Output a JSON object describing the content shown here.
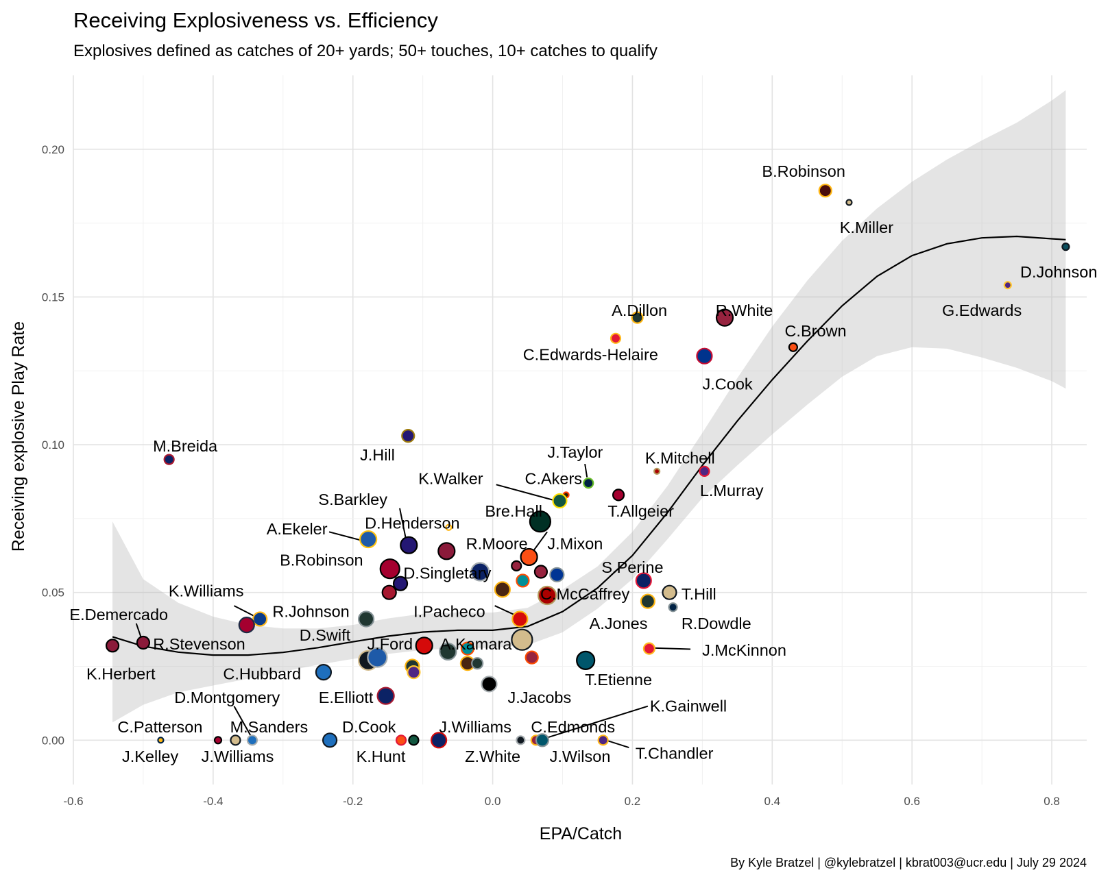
{
  "chart_data": {
    "type": "scatter",
    "title": "Receiving Explosiveness vs. Efficiency",
    "subtitle": "Explosives defined as catches of 20+ yards; 50+ touches, 10+ catches to qualify",
    "xlabel": "EPA/Catch",
    "ylabel": "Receiving explosive Play Rate",
    "caption": "By Kyle Bratzel | @kylebratzel | kbrat003@ucr.edu | July 29 2024",
    "xlim": [
      -0.6,
      0.85
    ],
    "ylim": [
      -0.015,
      0.225
    ],
    "x_ticks": [
      "-0.6",
      "-0.4",
      "-0.2",
      "0.0",
      "0.2",
      "0.4",
      "0.6",
      "0.8"
    ],
    "y_ticks": [
      "0.00",
      "0.05",
      "0.10",
      "0.15",
      "0.20"
    ],
    "grid": true,
    "points": [
      {
        "x": 0.82,
        "y": 0.167,
        "r": 5,
        "fill": "#0b4f5e",
        "stroke": "#101820",
        "label": "D.Johnson",
        "lx": 0.81,
        "ly": 0.1585
      },
      {
        "x": 0.737,
        "y": 0.154,
        "r": 5,
        "fill": "#4f2683",
        "stroke": "#ffc62f",
        "label": "G.Edwards",
        "lx": 0.7,
        "ly": 0.1455
      },
      {
        "x": 0.476,
        "y": 0.186,
        "r": 9,
        "fill": "#4a0d0d",
        "stroke": "#ffb612",
        "label": "B.Robinson",
        "lx": 0.445,
        "ly": 0.1925
      },
      {
        "x": 0.51,
        "y": 0.182,
        "r": 4,
        "fill": "#d3bc8d",
        "stroke": "#101820",
        "label": "K.Miller",
        "lx": 0.535,
        "ly": 0.1735
      },
      {
        "x": 0.332,
        "y": 0.143,
        "r": 12,
        "fill": "#97233f",
        "stroke": "#000000",
        "label": "R.White",
        "lx": 0.36,
        "ly": 0.1455
      },
      {
        "x": 0.207,
        "y": 0.143,
        "r": 8,
        "fill": "#203731",
        "stroke": "#ffb612",
        "label": "A.Dillon",
        "lx": 0.21,
        "ly": 0.1455
      },
      {
        "x": 0.176,
        "y": 0.136,
        "r": 7,
        "fill": "#e31837",
        "stroke": "#ffb81c",
        "label": "C.Edwards-Helaire",
        "lx": 0.14,
        "ly": 0.1305
      },
      {
        "x": 0.43,
        "y": 0.133,
        "r": 6,
        "fill": "#fb4f14",
        "stroke": "#000000",
        "label": "C.Brown",
        "lx": 0.462,
        "ly": 0.1385
      },
      {
        "x": 0.303,
        "y": 0.13,
        "r": 11,
        "fill": "#00338d",
        "stroke": "#c60c30",
        "label": "J.Cook",
        "lx": 0.336,
        "ly": 0.1205
      },
      {
        "x": -0.121,
        "y": 0.103,
        "r": 9,
        "fill": "#241773",
        "stroke": "#9e7c0c",
        "label": "J.Hill",
        "lx": -0.165,
        "ly": 0.0965
      },
      {
        "x": -0.463,
        "y": 0.095,
        "r": 7,
        "fill": "#0b2265",
        "stroke": "#a71930",
        "label": "M.Breida",
        "lx": -0.44,
        "ly": 0.0995
      },
      {
        "x": 0.235,
        "y": 0.091,
        "r": 4,
        "fill": "#aa0000",
        "stroke": "#b3995d",
        "label": "K.Mitchell",
        "lx": 0.268,
        "ly": 0.0955
      },
      {
        "x": 0.303,
        "y": 0.091,
        "r": 7,
        "fill": "#4f2683",
        "stroke": "#e31837",
        "label": "L.Murray",
        "lx": 0.342,
        "ly": 0.0845
      },
      {
        "x": 0.137,
        "y": 0.087,
        "r": 7,
        "fill": "#002244",
        "stroke": "#69be28",
        "label": "J.Taylor",
        "lx": 0.118,
        "ly": 0.0975,
        "leader": [
          0.132,
          0.0935,
          0.135,
          0.089
        ]
      },
      {
        "x": 0.18,
        "y": 0.083,
        "r": 8,
        "fill": "#a5002f",
        "stroke": "#000000",
        "label": "T.Allgeier",
        "lx": 0.212,
        "ly": 0.0775
      },
      {
        "x": 0.105,
        "y": 0.083,
        "r": 4,
        "fill": "#311d00",
        "stroke": "#ff3c00",
        "label": "C.Akers",
        "lx": 0.087,
        "ly": 0.0885
      },
      {
        "x": 0.096,
        "y": 0.081,
        "r": 10,
        "fill": "#125740",
        "stroke": "#ffe000",
        "label": "K.Walker",
        "lx": -0.06,
        "ly": 0.0885,
        "leader": [
          0.005,
          0.0865,
          0.094,
          0.0808
        ]
      },
      {
        "x": 0.068,
        "y": 0.074,
        "r": 15,
        "fill": "#003024",
        "stroke": "#000000",
        "label": "Bre.Hall",
        "lx": 0.03,
        "ly": 0.0775
      },
      {
        "x": -0.063,
        "y": 0.072,
        "r": 4,
        "fill": "#ffffff",
        "stroke": "#ffb612",
        "label": "D.Henderson",
        "lx": -0.115,
        "ly": 0.0735
      },
      {
        "x": -0.178,
        "y": 0.068,
        "r": 12,
        "fill": "#1e5aa8",
        "stroke": "#ffc20e",
        "label": "A.Ekeler",
        "lx": -0.28,
        "ly": 0.0715,
        "leader": [
          -0.234,
          0.0705,
          -0.186,
          0.0675
        ]
      },
      {
        "x": -0.12,
        "y": 0.066,
        "r": 12,
        "fill": "#241773",
        "stroke": "#000000",
        "label": "S.Barkley",
        "lx": -0.2,
        "ly": 0.0815,
        "leader": [
          -0.133,
          0.0785,
          -0.122,
          0.0655
        ]
      },
      {
        "x": -0.066,
        "y": 0.064,
        "r": 12,
        "fill": "#8b1a3a",
        "stroke": "#000000",
        "label": "R.Moore",
        "lx": 0.006,
        "ly": 0.0665
      },
      {
        "x": 0.052,
        "y": 0.062,
        "r": 12,
        "fill": "#fb4f14",
        "stroke": "#000000",
        "label": "J.Mixon",
        "lx": 0.118,
        "ly": 0.0665,
        "leader": [
          0.078,
          0.0705,
          0.058,
          0.064
        ]
      },
      {
        "x": -0.147,
        "y": 0.058,
        "r": 14,
        "fill": "#a5002f",
        "stroke": "#000000",
        "label": "B.Robinson",
        "lx": -0.245,
        "ly": 0.061
      },
      {
        "x": -0.018,
        "y": 0.057,
        "r": 13,
        "fill": "#0b2265",
        "stroke": "#a5acaf",
        "label": "D.Singletary",
        "lx": -0.065,
        "ly": 0.0565
      },
      {
        "x": 0.034,
        "y": 0.059,
        "r": 7,
        "fill": "#97233f",
        "stroke": "#000000"
      },
      {
        "x": 0.069,
        "y": 0.057,
        "r": 9,
        "fill": "#97233f",
        "stroke": "#000000"
      },
      {
        "x": 0.092,
        "y": 0.056,
        "r": 10,
        "fill": "#003594",
        "stroke": "#869397"
      },
      {
        "x": 0.043,
        "y": 0.054,
        "r": 9,
        "fill": "#008e97",
        "stroke": "#fc4c02"
      },
      {
        "x": -0.132,
        "y": 0.053,
        "r": 10,
        "fill": "#241773",
        "stroke": "#000000"
      },
      {
        "x": -0.148,
        "y": 0.05,
        "r": 10,
        "fill": "#a71930",
        "stroke": "#000000"
      },
      {
        "x": 0.014,
        "y": 0.051,
        "r": 11,
        "fill": "#4a2511",
        "stroke": "#ffb612"
      },
      {
        "x": 0.078,
        "y": 0.049,
        "r": 13,
        "fill": "#aa0000",
        "stroke": "#b3995d",
        "label": "C.McCaffrey",
        "lx": 0.132,
        "ly": 0.0495
      },
      {
        "x": 0.216,
        "y": 0.054,
        "r": 11,
        "fill": "#0b2265",
        "stroke": "#e31837",
        "label": "S.Perine",
        "lx": 0.2,
        "ly": 0.0585
      },
      {
        "x": 0.253,
        "y": 0.05,
        "r": 10,
        "fill": "#d3bc8d",
        "stroke": "#101820",
        "label": "T.Hill",
        "lx": 0.295,
        "ly": 0.0495
      },
      {
        "x": 0.222,
        "y": 0.047,
        "r": 10,
        "fill": "#203731",
        "stroke": "#ffb612",
        "label": "A.Jones",
        "lx": 0.18,
        "ly": 0.0395
      },
      {
        "x": 0.258,
        "y": 0.045,
        "r": 6,
        "fill": "#002244",
        "stroke": "#869397",
        "label": "R.Dowdle",
        "lx": 0.32,
        "ly": 0.0395
      },
      {
        "x": 0.039,
        "y": 0.041,
        "r": 11,
        "fill": "#d50a0a",
        "stroke": "#ffb612",
        "label": "I.Pacheco",
        "lx": -0.062,
        "ly": 0.0435,
        "leader": [
          0.003,
          0.0455,
          0.037,
          0.0418
        ]
      },
      {
        "x": -0.333,
        "y": 0.041,
        "r": 10,
        "fill": "#0b3c8a",
        "stroke": "#ffb81c",
        "label": "K.Williams",
        "lx": -0.41,
        "ly": 0.0505,
        "leader": [
          -0.37,
          0.0455,
          -0.337,
          0.0415
        ]
      },
      {
        "x": -0.181,
        "y": 0.041,
        "r": 11,
        "fill": "#203731",
        "stroke": "#869397",
        "label": "R.Johnson",
        "lx": -0.26,
        "ly": 0.0435
      },
      {
        "x": -0.352,
        "y": 0.039,
        "r": 11,
        "fill": "#a5002f",
        "stroke": "#1f2a44",
        "label": "D.Swift",
        "lx": -0.24,
        "ly": 0.0355
      },
      {
        "x": -0.544,
        "y": 0.032,
        "r": 9,
        "fill": "#8b1a3a",
        "stroke": "#000000",
        "label": "K.Herbert",
        "lx": -0.532,
        "ly": 0.0225
      },
      {
        "x": -0.5,
        "y": 0.033,
        "r": 9,
        "fill": "#8b1a3a",
        "stroke": "#000000",
        "label": "R.Stevenson",
        "lx": -0.42,
        "ly": 0.0325
      },
      {
        "x": -0.5,
        "y": 0.033,
        "r": 0,
        "label": "E.Demercado",
        "lx": -0.535,
        "ly": 0.0425,
        "leader": [
          -0.51,
          0.0395,
          -0.502,
          0.034
        ]
      },
      {
        "x": -0.098,
        "y": 0.032,
        "r": 12,
        "fill": "#d50a0a",
        "stroke": "#000000",
        "label": "J.Ford",
        "lx": -0.147,
        "ly": 0.0325
      },
      {
        "x": -0.064,
        "y": 0.03,
        "r": 12,
        "fill": "#203731",
        "stroke": "#869397",
        "label": "A.Kamara",
        "lx": -0.024,
        "ly": 0.0325
      },
      {
        "x": 0.042,
        "y": 0.034,
        "r": 15,
        "fill": "#d3bc8d",
        "stroke": "#101820"
      },
      {
        "x": -0.036,
        "y": 0.031,
        "r": 9,
        "fill": "#008e97",
        "stroke": "#fc4c02"
      },
      {
        "x": -0.178,
        "y": 0.027,
        "r": 14,
        "fill": "#101820",
        "stroke": "#d3bc8d"
      },
      {
        "x": -0.165,
        "y": 0.028,
        "r": 14,
        "fill": "#1e5aa8",
        "stroke": "#a5acaf"
      },
      {
        "x": -0.115,
        "y": 0.025,
        "r": 10,
        "fill": "#203731",
        "stroke": "#ffb612"
      },
      {
        "x": -0.113,
        "y": 0.023,
        "r": 9,
        "fill": "#4f2683",
        "stroke": "#ffc62f"
      },
      {
        "x": -0.036,
        "y": 0.026,
        "r": 10,
        "fill": "#4a2511",
        "stroke": "#ffb612"
      },
      {
        "x": -0.022,
        "y": 0.026,
        "r": 8,
        "fill": "#203731",
        "stroke": "#869397"
      },
      {
        "x": 0.056,
        "y": 0.028,
        "r": 9,
        "fill": "#97233f",
        "stroke": "#fc4c02"
      },
      {
        "x": -0.242,
        "y": 0.023,
        "r": 11,
        "fill": "#1e6fbd",
        "stroke": "#101820",
        "label": "C.Hubbard",
        "lx": -0.33,
        "ly": 0.0225
      },
      {
        "x": 0.133,
        "y": 0.027,
        "r": 13,
        "fill": "#00566b",
        "stroke": "#000000",
        "label": "T.Etienne",
        "lx": 0.18,
        "ly": 0.0205
      },
      {
        "x": 0.224,
        "y": 0.031,
        "r": 8,
        "fill": "#e31837",
        "stroke": "#ffb81c",
        "label": "J.McKinnon",
        "lx": 0.36,
        "ly": 0.0305,
        "leader": [
          0.283,
          0.0308,
          0.23,
          0.0312
        ]
      },
      {
        "x": -0.005,
        "y": 0.019,
        "r": 11,
        "fill": "#000000",
        "stroke": "#a5acaf",
        "label": "J.Jacobs",
        "lx": 0.067,
        "ly": 0.0145
      },
      {
        "x": -0.153,
        "y": 0.015,
        "r": 12,
        "fill": "#0b2265",
        "stroke": "#a71930",
        "label": "E.Elliott",
        "lx": -0.21,
        "ly": 0.0145
      },
      {
        "x": -0.475,
        "y": 0.0,
        "r": 4,
        "fill": "#ffb612",
        "stroke": "#002244",
        "label": "C.Patterson",
        "lx": -0.476,
        "ly": 0.0045
      },
      {
        "x": -0.476,
        "y": 0.0,
        "r": 0,
        "label": "J.Kelley",
        "lx": -0.49,
        "ly": -0.0055
      },
      {
        "x": -0.393,
        "y": 0.0,
        "r": 5,
        "fill": "#a5002f",
        "stroke": "#000000"
      },
      {
        "x": -0.368,
        "y": 0.0,
        "r": 7,
        "fill": "#d3bc8d",
        "stroke": "#101820",
        "label": "J.Williams",
        "lx": -0.365,
        "ly": -0.0055
      },
      {
        "x": -0.344,
        "y": 0.0,
        "r": 7,
        "fill": "#1e6fbd",
        "stroke": "#a5acaf",
        "label": "M.Sanders",
        "lx": -0.32,
        "ly": 0.0045
      },
      {
        "x": -0.344,
        "y": 0.0,
        "r": 0,
        "label": "D.Montgomery",
        "lx": -0.38,
        "ly": 0.0145,
        "leader": [
          -0.37,
          0.0115,
          -0.345,
          0.001
        ]
      },
      {
        "x": -0.233,
        "y": 0.0,
        "r": 10,
        "fill": "#1e6fbd",
        "stroke": "#101820",
        "label": "D.Cook",
        "lx": -0.177,
        "ly": 0.0045
      },
      {
        "x": -0.131,
        "y": 0.0,
        "r": 7,
        "fill": "#fb4f14",
        "stroke": "#e31837"
      },
      {
        "x": -0.113,
        "y": 0.0,
        "r": 7,
        "fill": "#125740",
        "stroke": "#000000",
        "label": "K.Hunt",
        "lx": -0.16,
        "ly": -0.0055
      },
      {
        "x": -0.077,
        "y": 0.0,
        "r": 11,
        "fill": "#0b2265",
        "stroke": "#d50a0a",
        "label": "J.Williams",
        "lx": -0.025,
        "ly": 0.0045
      },
      {
        "x": 0.04,
        "y": 0.0,
        "r": 6,
        "fill": "#101820",
        "stroke": "#a5acaf",
        "label": "Z.White",
        "lx": 0.0,
        "ly": -0.0055
      },
      {
        "x": 0.062,
        "y": 0.0,
        "r": 7,
        "fill": "#97233f",
        "stroke": "#ffb612",
        "label": "C.Edmonds",
        "lx": 0.115,
        "ly": 0.0045
      },
      {
        "x": 0.071,
        "y": 0.0,
        "r": 9,
        "fill": "#00566b",
        "stroke": "#869397",
        "label": "J.Wilson",
        "lx": 0.125,
        "ly": -0.0055,
        "leader2": [
          0.222,
          0.0115,
          0.073,
          0.0005
        ],
        "label2": "K.Gainwell",
        "lx2": 0.28,
        "ly2": 0.0115
      },
      {
        "x": 0.158,
        "y": 0.0,
        "r": 7,
        "fill": "#4f2683",
        "stroke": "#ffb81c",
        "label": "T.Chandler",
        "lx": 0.26,
        "ly": -0.0045,
        "leader": [
          0.195,
          -0.0025,
          0.162,
          0.0
        ]
      }
    ],
    "smooth_line": {
      "x": [
        -0.544,
        -0.5,
        -0.45,
        -0.4,
        -0.35,
        -0.3,
        -0.25,
        -0.2,
        -0.15,
        -0.1,
        -0.05,
        0.0,
        0.05,
        0.1,
        0.15,
        0.2,
        0.25,
        0.3,
        0.35,
        0.4,
        0.45,
        0.5,
        0.55,
        0.6,
        0.65,
        0.7,
        0.75,
        0.8,
        0.82
      ],
      "y": [
        0.035,
        0.0318,
        0.0298,
        0.0288,
        0.0288,
        0.0297,
        0.0313,
        0.0333,
        0.0352,
        0.0366,
        0.0372,
        0.0372,
        0.0385,
        0.0435,
        0.0515,
        0.0625,
        0.077,
        0.093,
        0.108,
        0.122,
        0.135,
        0.147,
        0.157,
        0.164,
        0.168,
        0.17,
        0.1705,
        0.1697,
        0.1694
      ],
      "lo": [
        0.006,
        0.012,
        0.0162,
        0.0185,
        0.0208,
        0.0232,
        0.0255,
        0.0275,
        0.0292,
        0.0305,
        0.0312,
        0.0312,
        0.0322,
        0.0365,
        0.0445,
        0.0545,
        0.068,
        0.082,
        0.093,
        0.1035,
        0.1135,
        0.123,
        0.13,
        0.133,
        0.1325,
        0.1295,
        0.126,
        0.1215,
        0.119
      ],
      "hi": [
        0.074,
        0.0545,
        0.0465,
        0.0418,
        0.039,
        0.0378,
        0.0378,
        0.039,
        0.0412,
        0.0428,
        0.0432,
        0.0432,
        0.0448,
        0.051,
        0.0588,
        0.0705,
        0.086,
        0.104,
        0.1225,
        0.14,
        0.1555,
        0.169,
        0.18,
        0.189,
        0.1965,
        0.203,
        0.209,
        0.2165,
        0.22
      ]
    }
  }
}
